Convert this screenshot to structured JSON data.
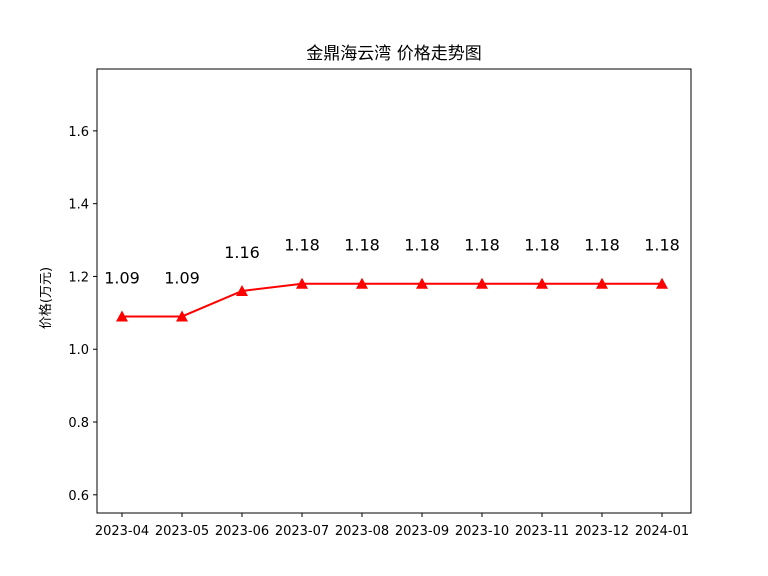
{
  "chart_data": {
    "type": "line",
    "title": "金鼎海云湾 价格走势图",
    "xlabel": "",
    "ylabel": "价格(万元)",
    "categories": [
      "2023-04",
      "2023-05",
      "2023-06",
      "2023-07",
      "2023-08",
      "2023-09",
      "2023-10",
      "2023-11",
      "2023-12",
      "2024-01"
    ],
    "series": [
      {
        "values": [
          1.09,
          1.09,
          1.16,
          1.18,
          1.18,
          1.18,
          1.18,
          1.18,
          1.18,
          1.18
        ],
        "data_labels": [
          "1.09",
          "1.09",
          "1.16",
          "1.18",
          "1.18",
          "1.18",
          "1.18",
          "1.18",
          "1.18",
          "1.18"
        ],
        "color": "#ff0000",
        "marker": "triangle"
      }
    ],
    "yticks": [
      "0.6",
      "0.8",
      "1.0",
      "1.2",
      "1.4",
      "1.6"
    ],
    "ytick_values": [
      0.6,
      0.8,
      1.0,
      1.2,
      1.4,
      1.6
    ],
    "ylim": [
      0.55,
      1.77
    ],
    "grid": false,
    "legend": "none"
  }
}
